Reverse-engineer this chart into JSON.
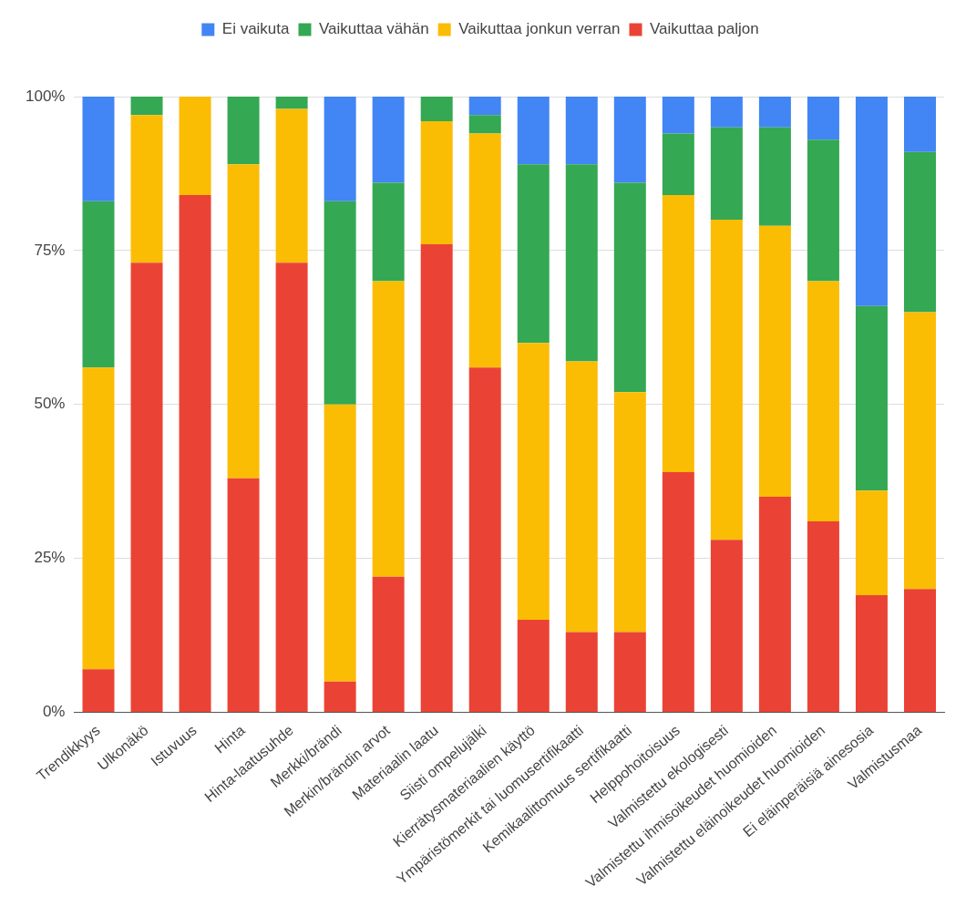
{
  "chart_data": {
    "type": "bar",
    "stacked": true,
    "categories": [
      "Trendikkyys",
      "Ulkonäkö",
      "Istuvuus",
      "Hinta",
      "Hinta-laatusuhde",
      "Merkki/brändi",
      "Merkin/brändin arvot",
      "Materiaalin laatu",
      "Siisti ompelujälki",
      "Kierrätysmateriaalien käyttö",
      "Ympäristömerkit tai luomusertifikaatti",
      "Kemikaalittomuus sertifikaatti",
      "Helppohoitoisuus",
      "Valmistettu ekologisesti",
      "Valmistettu ihmisoikeudet huomioiden",
      "Valmistettu eläinoikeudet huomioiden",
      "Ei eläinperäisiä ainesosia",
      "Valmistusmaa"
    ],
    "series": [
      {
        "name": "Vaikuttaa paljon",
        "color": "#ea4335",
        "values": [
          7,
          73,
          84,
          38,
          73,
          5,
          22,
          76,
          56,
          15,
          13,
          13,
          39,
          28,
          35,
          31,
          19,
          20
        ]
      },
      {
        "name": "Vaikuttaa jonkun verran",
        "color": "#fbbc04",
        "values": [
          49,
          24,
          16,
          51,
          25,
          45,
          48,
          20,
          38,
          45,
          44,
          39,
          45,
          52,
          44,
          39,
          17,
          45
        ]
      },
      {
        "name": "Vaikuttaa vähän",
        "color": "#34a853",
        "values": [
          27,
          3,
          0,
          11,
          2,
          33,
          16,
          4,
          3,
          29,
          32,
          34,
          10,
          15,
          16,
          23,
          30,
          26
        ]
      },
      {
        "name": "Ei vaikuta",
        "color": "#4285f4",
        "values": [
          17,
          0,
          0,
          0,
          0,
          17,
          14,
          0,
          3,
          11,
          11,
          14,
          6,
          5,
          5,
          7,
          34,
          9
        ]
      }
    ],
    "ylim": [
      0,
      100
    ],
    "yticks": [
      {
        "value": 0,
        "label": "0%"
      },
      {
        "value": 25,
        "label": "25%"
      },
      {
        "value": 50,
        "label": "50%"
      },
      {
        "value": 75,
        "label": "75%"
      },
      {
        "value": 100,
        "label": "100%"
      }
    ],
    "grid": "y",
    "legend": "top"
  }
}
